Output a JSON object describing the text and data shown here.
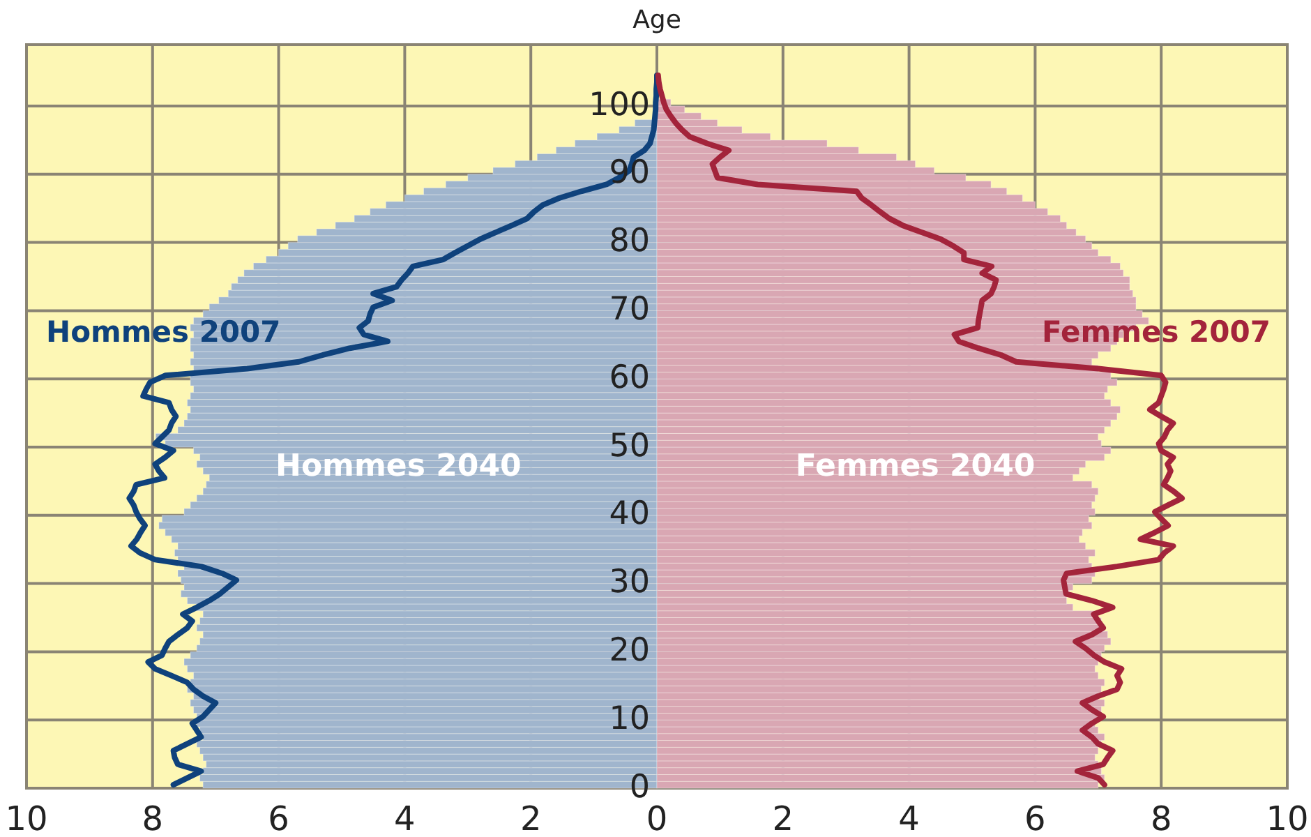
{
  "chart_data": {
    "type": "bar",
    "orientation": "horizontal",
    "stacked": true,
    "ylabel": "Age",
    "grid": true,
    "x": [
      0,
      1,
      2,
      3,
      4,
      5,
      6,
      7,
      8,
      9,
      10,
      11,
      12,
      13,
      14,
      15,
      16,
      17,
      18,
      19,
      20,
      21,
      22,
      23,
      24,
      25,
      26,
      27,
      28,
      29,
      30,
      31,
      32,
      33,
      34,
      35,
      36,
      37,
      38,
      39,
      40,
      41,
      42,
      43,
      44,
      45,
      46,
      47,
      48,
      49,
      50,
      51,
      52,
      53,
      54,
      55,
      56,
      57,
      58,
      59,
      60,
      61,
      62,
      63,
      64,
      65,
      66,
      67,
      68,
      69,
      70,
      71,
      72,
      73,
      74,
      75,
      76,
      77,
      78,
      79,
      80,
      81,
      82,
      83,
      84,
      85,
      86,
      87,
      88,
      89,
      90,
      91,
      92,
      93,
      94,
      95,
      96,
      97,
      98,
      99,
      100,
      101,
      102,
      103,
      104
    ],
    "xlim": [
      -10,
      10
    ],
    "xticks": [
      {
        "value": -10,
        "label": "10"
      },
      {
        "value": -8,
        "label": "8"
      },
      {
        "value": -6,
        "label": "6"
      },
      {
        "value": -4,
        "label": "4"
      },
      {
        "value": -2,
        "label": "2"
      },
      0,
      2,
      4,
      6,
      8,
      10
    ],
    "ylim": [
      0,
      109
    ],
    "yticks": [
      0,
      10,
      20,
      30,
      40,
      50,
      60,
      70,
      80,
      90,
      100
    ],
    "series": [
      {
        "name": "Hommes 2040",
        "color": "#a0b5cd",
        "values": [
          -7.2,
          -7.25,
          -7.2,
          -7.15,
          -7.2,
          -7.25,
          -7.3,
          -7.2,
          -7.25,
          -7.3,
          -7.3,
          -7.35,
          -7.4,
          -7.35,
          -7.45,
          -7.4,
          -7.35,
          -7.45,
          -7.5,
          -7.4,
          -7.3,
          -7.25,
          -7.2,
          -7.3,
          -7.25,
          -7.2,
          -7.3,
          -7.45,
          -7.55,
          -7.5,
          -7.55,
          -7.6,
          -7.5,
          -7.6,
          -7.65,
          -7.6,
          -7.7,
          -7.8,
          -7.9,
          -7.85,
          -7.5,
          -7.4,
          -7.3,
          -7.2,
          -7.15,
          -7.1,
          -7.2,
          -7.3,
          -7.25,
          -7.35,
          -7.8,
          -7.95,
          -7.6,
          -7.5,
          -7.45,
          -7.4,
          -7.45,
          -7.4,
          -7.35,
          -7.4,
          -7.4,
          -7.35,
          -7.4,
          -7.35,
          -7.4,
          -7.4,
          -7.35,
          -7.4,
          -7.35,
          -7.2,
          -7.1,
          -6.95,
          -6.8,
          -6.75,
          -6.65,
          -6.55,
          -6.4,
          -6.2,
          -6.0,
          -5.85,
          -5.7,
          -5.4,
          -5.1,
          -4.8,
          -4.55,
          -4.3,
          -4.0,
          -3.7,
          -3.35,
          -3.0,
          -2.6,
          -2.25,
          -1.9,
          -1.6,
          -1.3,
          -0.95,
          -0.6,
          -0.35,
          null,
          null,
          null,
          null,
          null,
          null,
          null
        ]
      },
      {
        "name": "Femmes 2040",
        "color": "#d9a7b3",
        "values": [
          7.0,
          7.1,
          7.05,
          7.0,
          6.95,
          7.0,
          7.05,
          7.1,
          7.0,
          6.95,
          7.0,
          7.05,
          7.1,
          7.0,
          7.05,
          7.1,
          7.0,
          6.95,
          7.0,
          7.05,
          7.1,
          7.2,
          7.15,
          7.1,
          7.05,
          6.95,
          6.6,
          6.5,
          6.55,
          6.6,
          6.9,
          6.95,
          6.9,
          6.85,
          6.95,
          6.8,
          6.7,
          6.75,
          6.9,
          6.85,
          6.95,
          6.9,
          6.95,
          7.0,
          6.9,
          6.6,
          6.7,
          6.8,
          7.1,
          7.2,
          7.05,
          7.0,
          7.1,
          7.2,
          7.3,
          7.35,
          7.2,
          7.1,
          7.15,
          7.3,
          7.2,
          7.0,
          6.9,
          7.0,
          7.2,
          7.3,
          7.4,
          7.6,
          7.8,
          7.7,
          7.6,
          7.6,
          7.55,
          7.5,
          7.5,
          7.4,
          7.35,
          7.2,
          7.0,
          6.9,
          6.8,
          6.65,
          6.5,
          6.4,
          6.2,
          6.0,
          5.8,
          5.55,
          5.3,
          4.9,
          4.4,
          4.1,
          3.8,
          3.2,
          2.7,
          1.8,
          1.35,
          0.96,
          0.7,
          0.44,
          0.22,
          null,
          null,
          null,
          null
        ]
      },
      {
        "name": "Hommes 2007",
        "type": "line",
        "color": "#0f427c",
        "values": [
          -7.67,
          -7.45,
          -7.23,
          -7.6,
          -7.65,
          -7.67,
          -7.45,
          -7.23,
          -7.3,
          -7.37,
          -7.2,
          -7.1,
          -7.0,
          -7.2,
          -7.35,
          -7.45,
          -7.7,
          -7.96,
          -8.07,
          -7.85,
          -7.8,
          -7.74,
          -7.6,
          -7.45,
          -7.37,
          -7.52,
          -7.3,
          -7.1,
          -6.93,
          -6.8,
          -6.67,
          -6.9,
          -7.23,
          -7.96,
          -8.2,
          -8.34,
          -8.25,
          -8.19,
          -8.12,
          -8.2,
          -8.26,
          -8.3,
          -8.37,
          -8.3,
          -8.26,
          -7.81,
          -7.9,
          -7.96,
          -7.8,
          -7.67,
          -7.96,
          -7.85,
          -7.74,
          -7.7,
          -7.63,
          -7.7,
          -7.74,
          -8.15,
          -8.1,
          -8.04,
          -7.8,
          -6.5,
          -5.68,
          -5.3,
          -4.87,
          -4.27,
          -4.65,
          -4.72,
          -4.58,
          -4.55,
          -4.5,
          -4.2,
          -4.5,
          -4.13,
          -4.05,
          -3.95,
          -3.87,
          -3.39,
          -3.2,
          -3.0,
          -2.8,
          -2.55,
          -2.3,
          -2.06,
          -1.95,
          -1.81,
          -1.55,
          -1.2,
          -0.8,
          -0.6,
          -0.44,
          -0.4,
          -0.37,
          -0.2,
          -0.11,
          -0.08,
          -0.05,
          -0.04,
          -0.03,
          -0.02,
          -0.02,
          -0.01,
          -0.01,
          0,
          0
        ]
      },
      {
        "name": "Femmes 2007",
        "type": "line",
        "color": "#a3243b",
        "values": [
          7.1,
          7.0,
          6.67,
          7.08,
          7.15,
          7.23,
          7.0,
          6.9,
          6.75,
          6.9,
          7.08,
          6.9,
          6.75,
          7.0,
          7.3,
          7.35,
          7.3,
          7.37,
          7.1,
          6.93,
          6.8,
          6.64,
          6.9,
          7.08,
          7.0,
          6.93,
          7.23,
          6.9,
          6.49,
          6.47,
          6.45,
          6.5,
          7.3,
          7.96,
          8.05,
          8.19,
          7.67,
          7.9,
          8.11,
          8.0,
          7.9,
          8.11,
          8.33,
          8.2,
          8.04,
          8.1,
          8.15,
          8.1,
          8.19,
          8.0,
          7.96,
          8.05,
          8.1,
          8.19,
          8.0,
          7.82,
          7.96,
          8.0,
          8.04,
          8.07,
          8.0,
          7.0,
          5.7,
          5.46,
          5.1,
          4.79,
          4.72,
          5.09,
          5.1,
          5.12,
          5.14,
          5.16,
          5.3,
          5.35,
          5.38,
          5.16,
          5.31,
          4.87,
          4.87,
          4.7,
          4.5,
          4.2,
          3.9,
          3.69,
          3.54,
          3.4,
          3.25,
          3.17,
          1.6,
          0.96,
          0.92,
          0.88,
          1.0,
          1.14,
          0.8,
          0.52,
          0.4,
          0.3,
          0.22,
          0.15,
          0.11,
          0.08,
          0.05,
          0.03,
          0.02
        ]
      }
    ]
  }
}
